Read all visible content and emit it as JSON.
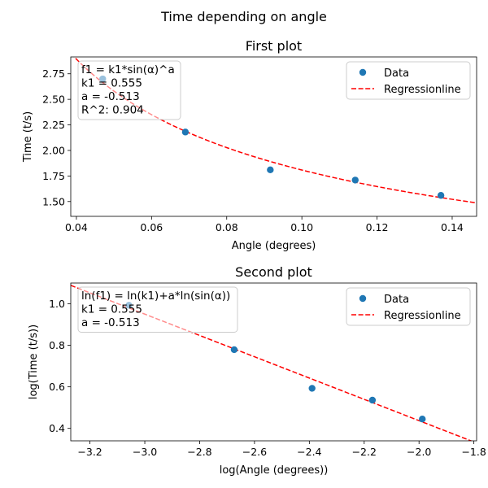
{
  "figure": {
    "suptitle": "Time depending on angle"
  },
  "chart_data": [
    {
      "type": "scatter",
      "title": "First plot",
      "xlabel": "Angle (degrees)",
      "ylabel": "Time (t/s)",
      "xlim": [
        0.0385,
        0.1465
      ],
      "ylim": [
        1.355,
        2.915
      ],
      "xticks": [
        0.04,
        0.06,
        0.08,
        0.1,
        0.12,
        0.14
      ],
      "xtick_labels": [
        "0.04",
        "0.06",
        "0.08",
        "0.10",
        "0.12",
        "0.14"
      ],
      "yticks": [
        1.5,
        1.75,
        2.0,
        2.25,
        2.5,
        2.75
      ],
      "ytick_labels": [
        "1.50",
        "1.75",
        "2.00",
        "2.25",
        "2.50",
        "2.75"
      ],
      "grid": false,
      "legend_position": "top-right",
      "series": [
        {
          "name": "Data",
          "kind": "scatter",
          "color": "#1f77b4",
          "x": [
            0.047,
            0.069,
            0.0916,
            0.1142,
            0.137
          ],
          "y": [
            2.7,
            2.18,
            1.81,
            1.71,
            1.56
          ]
        },
        {
          "name": "Regressionline",
          "kind": "line",
          "style": "dashed",
          "color": "#ff0000",
          "model": "k1*x^a",
          "k1": 0.555,
          "a": -0.513
        }
      ],
      "annotation": [
        "f1 = k1*sin(α)^a",
        "k1 = 0.555",
        "a = -0.513",
        "R^2: 0.904"
      ]
    },
    {
      "type": "scatter",
      "title": "Second plot",
      "xlabel": "log(Angle (degrees))",
      "ylabel": "log(Time (t/s))",
      "xlim": [
        -3.27,
        -1.79
      ],
      "ylim": [
        0.34,
        1.1
      ],
      "xticks": [
        -3.2,
        -3.0,
        -2.8,
        -2.6,
        -2.4,
        -2.2,
        -2.0,
        -1.8
      ],
      "xtick_labels": [
        "−3.2",
        "−3.0",
        "−2.8",
        "−2.6",
        "−2.4",
        "−2.2",
        "−2.0",
        "−1.8"
      ],
      "yticks": [
        0.4,
        0.6,
        0.8,
        1.0
      ],
      "ytick_labels": [
        "0.4",
        "0.6",
        "0.8",
        "1.0"
      ],
      "grid": false,
      "legend_position": "top-right",
      "series": [
        {
          "name": "Data",
          "kind": "scatter",
          "color": "#1f77b4",
          "x": [
            -3.058,
            -2.674,
            -2.39,
            -2.17,
            -1.988
          ],
          "y": [
            0.993,
            0.779,
            0.593,
            0.536,
            0.445
          ]
        },
        {
          "name": "Regressionline",
          "kind": "line",
          "style": "dashed",
          "color": "#ff0000",
          "model": "ln(k1)+a*x",
          "k1": 0.555,
          "a": -0.513
        }
      ],
      "annotation": [
        "ln(f1) = ln(k1)+a*ln(sin(α))",
        "k1 = 0.555",
        "a = -0.513"
      ]
    }
  ]
}
